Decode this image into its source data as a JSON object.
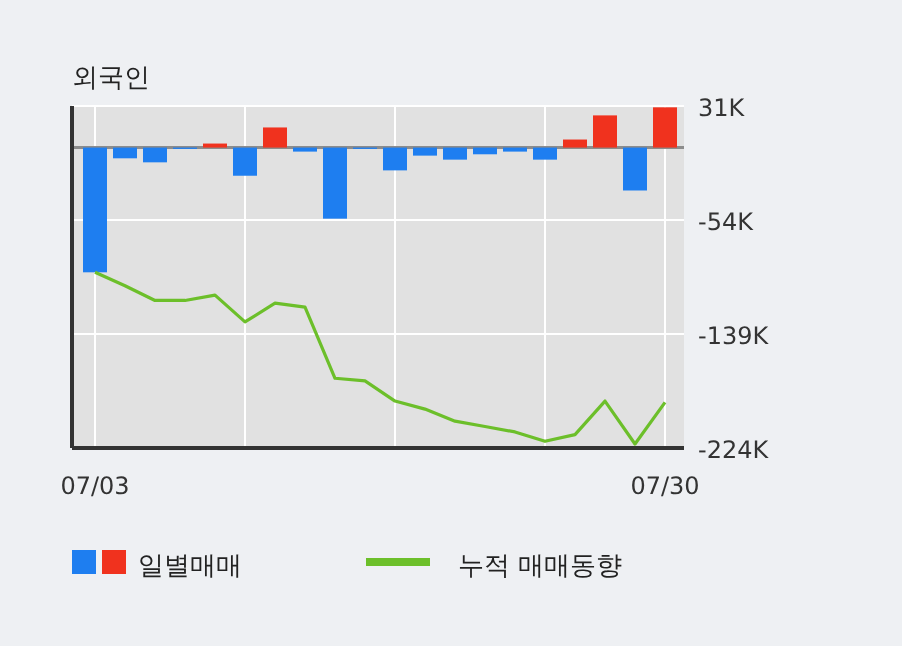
{
  "chart_data": {
    "type": "bar",
    "title": "외국인",
    "categories": [
      "07/03",
      null,
      null,
      null,
      null,
      null,
      null,
      null,
      null,
      null,
      null,
      null,
      null,
      null,
      null,
      null,
      null,
      null,
      null,
      "07/30"
    ],
    "series": [
      {
        "name": "일별매매",
        "colors": [
          "#1e7ef0",
          "#1e7ef0",
          "#1e7ef0",
          "#1e7ef0",
          "#f0321e",
          "#1e7ef0",
          "#f0321e",
          "#1e7ef0",
          "#1e7ef0",
          "#1e7ef0",
          "#1e7ef0",
          "#1e7ef0",
          "#1e7ef0",
          "#1e7ef0",
          "#1e7ef0",
          "#1e7ef0",
          "#f0321e",
          "#f0321e",
          "#1e7ef0",
          "#f0321e"
        ],
        "values": [
          -93,
          -8,
          -11,
          -1,
          3,
          -21,
          15,
          -3,
          -53,
          -1,
          -17,
          -6,
          -9,
          -5,
          -3,
          -9,
          6,
          24,
          -32,
          30
        ]
      },
      {
        "name": "누적 매매동향",
        "type": "line",
        "color": "#6cbf2a",
        "values": [
          -93,
          -103,
          -114,
          -114,
          -110,
          -130,
          -116,
          -119,
          -172,
          -174,
          -189,
          -195,
          -204,
          -208,
          -212,
          -219,
          -214,
          -189,
          -221,
          -190
        ]
      }
    ],
    "ylim": [
      -224,
      31
    ],
    "yticks": [
      {
        "value": 31,
        "label": "31K"
      },
      {
        "value": -54,
        "label": "-54K"
      },
      {
        "value": -139,
        "label": "-139K"
      },
      {
        "value": -224,
        "label": "-224K"
      }
    ],
    "ref_lines": [
      {
        "axis": "y",
        "value": 0,
        "color": "#8c8c8c"
      }
    ],
    "grid": true,
    "legend": "bottom"
  }
}
